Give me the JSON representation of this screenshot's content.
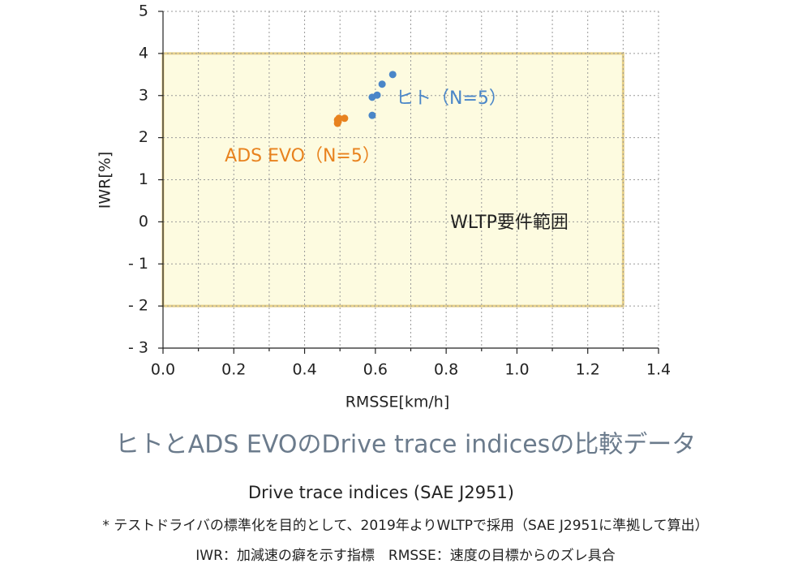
{
  "chart_data": {
    "type": "scatter",
    "x_label": "RMSSE[km/h]",
    "y_label": "IWR[%]",
    "xlim": [
      0,
      1.4
    ],
    "xticks": [
      {
        "value": 0,
        "label": "0.0"
      },
      0.2,
      0.4,
      0.6,
      0.8,
      {
        "value": 1,
        "label": "1.0"
      },
      1.2,
      1.4
    ],
    "x_minor_ticks": [
      0.1,
      0.3,
      0.5,
      0.7,
      0.9,
      1.1,
      1.3
    ],
    "ylim": [
      -3,
      5
    ],
    "yticks": [
      {
        "value": -3,
        "label": "- 3"
      },
      {
        "value": -2,
        "label": "- 2"
      },
      {
        "value": -1,
        "label": "- 1"
      },
      0,
      1,
      2,
      3,
      4,
      5
    ],
    "grid": true,
    "region": {
      "label": "WLTP要件範囲",
      "x": [
        0,
        1.3
      ],
      "y": [
        -2,
        4
      ],
      "fill": "#fdfbe0",
      "stroke": "#e6d08a"
    },
    "series": [
      {
        "name": "ヒト（N=5）",
        "color": "#4a86c8",
        "x": [
          0.649,
          0.619,
          0.605,
          0.591,
          0.591
        ],
        "values": [
          3.5,
          3.27,
          3.01,
          2.96,
          2.53
        ]
      },
      {
        "name": "ADS EVO（N=5）",
        "color": "#e8821e",
        "x": [
          0.493,
          0.497,
          0.513,
          0.493,
          0.495
        ],
        "values": [
          2.42,
          2.46,
          2.46,
          2.34,
          2.38
        ]
      }
    ],
    "caption": "ヒトとADS EVOのDrive trace indicesの比較データ",
    "subtitle": "Drive trace indices (SAE J2951)",
    "notes": [
      "* テストドライバの標準化を目的として、2019年よりWLTPで採用（SAE J2951に準拠して算出）",
      "IWR：加減速の癖を示す指標　RMSSE：速度の目標からのズレ具合"
    ]
  }
}
